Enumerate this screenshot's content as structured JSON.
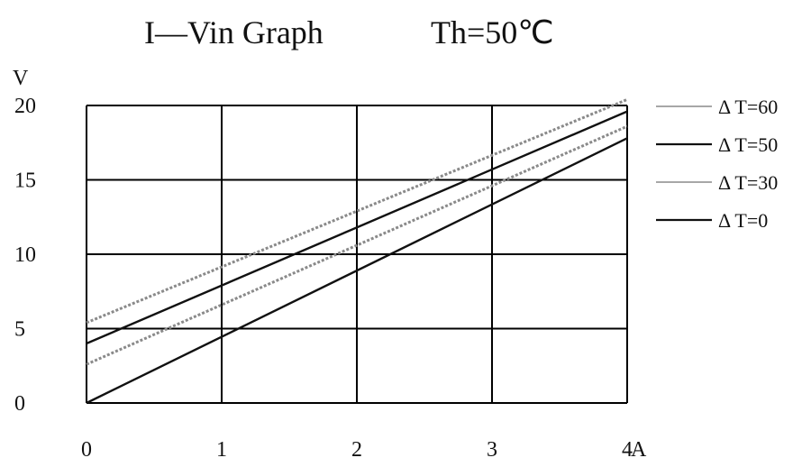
{
  "title_left": "I—Vin Graph",
  "title_right": "Th=50℃",
  "chart_data": {
    "type": "line",
    "title": "I—Vin Graph Th=50℃",
    "ylabel": "V",
    "x_unit": "A",
    "xlim": [
      0,
      4
    ],
    "ylim": [
      0,
      20
    ],
    "x_ticks": [
      0,
      1,
      2,
      3,
      4
    ],
    "x_tick_labels": [
      "0",
      "1",
      "2",
      "3",
      "4"
    ],
    "y_ticks": [
      0,
      5,
      10,
      15,
      20
    ],
    "y_tick_labels": [
      "0",
      "5",
      "10",
      "15",
      "20"
    ],
    "grid": true,
    "legend_position": "right",
    "series": [
      {
        "name": "Δ T=60",
        "style": "dotted",
        "color": "#8a8a8a",
        "x": [
          0,
          4
        ],
        "y": [
          5.4,
          20.4
        ]
      },
      {
        "name": "Δ T=50",
        "style": "solid",
        "color": "#111111",
        "x": [
          0,
          4
        ],
        "y": [
          4.0,
          19.6
        ]
      },
      {
        "name": "Δ T=30",
        "style": "dotted",
        "color": "#8a8a8a",
        "x": [
          0,
          4
        ],
        "y": [
          2.6,
          18.6
        ]
      },
      {
        "name": "Δ T=0",
        "style": "solid",
        "color": "#111111",
        "x": [
          0,
          4
        ],
        "y": [
          0,
          17.8
        ]
      }
    ]
  }
}
